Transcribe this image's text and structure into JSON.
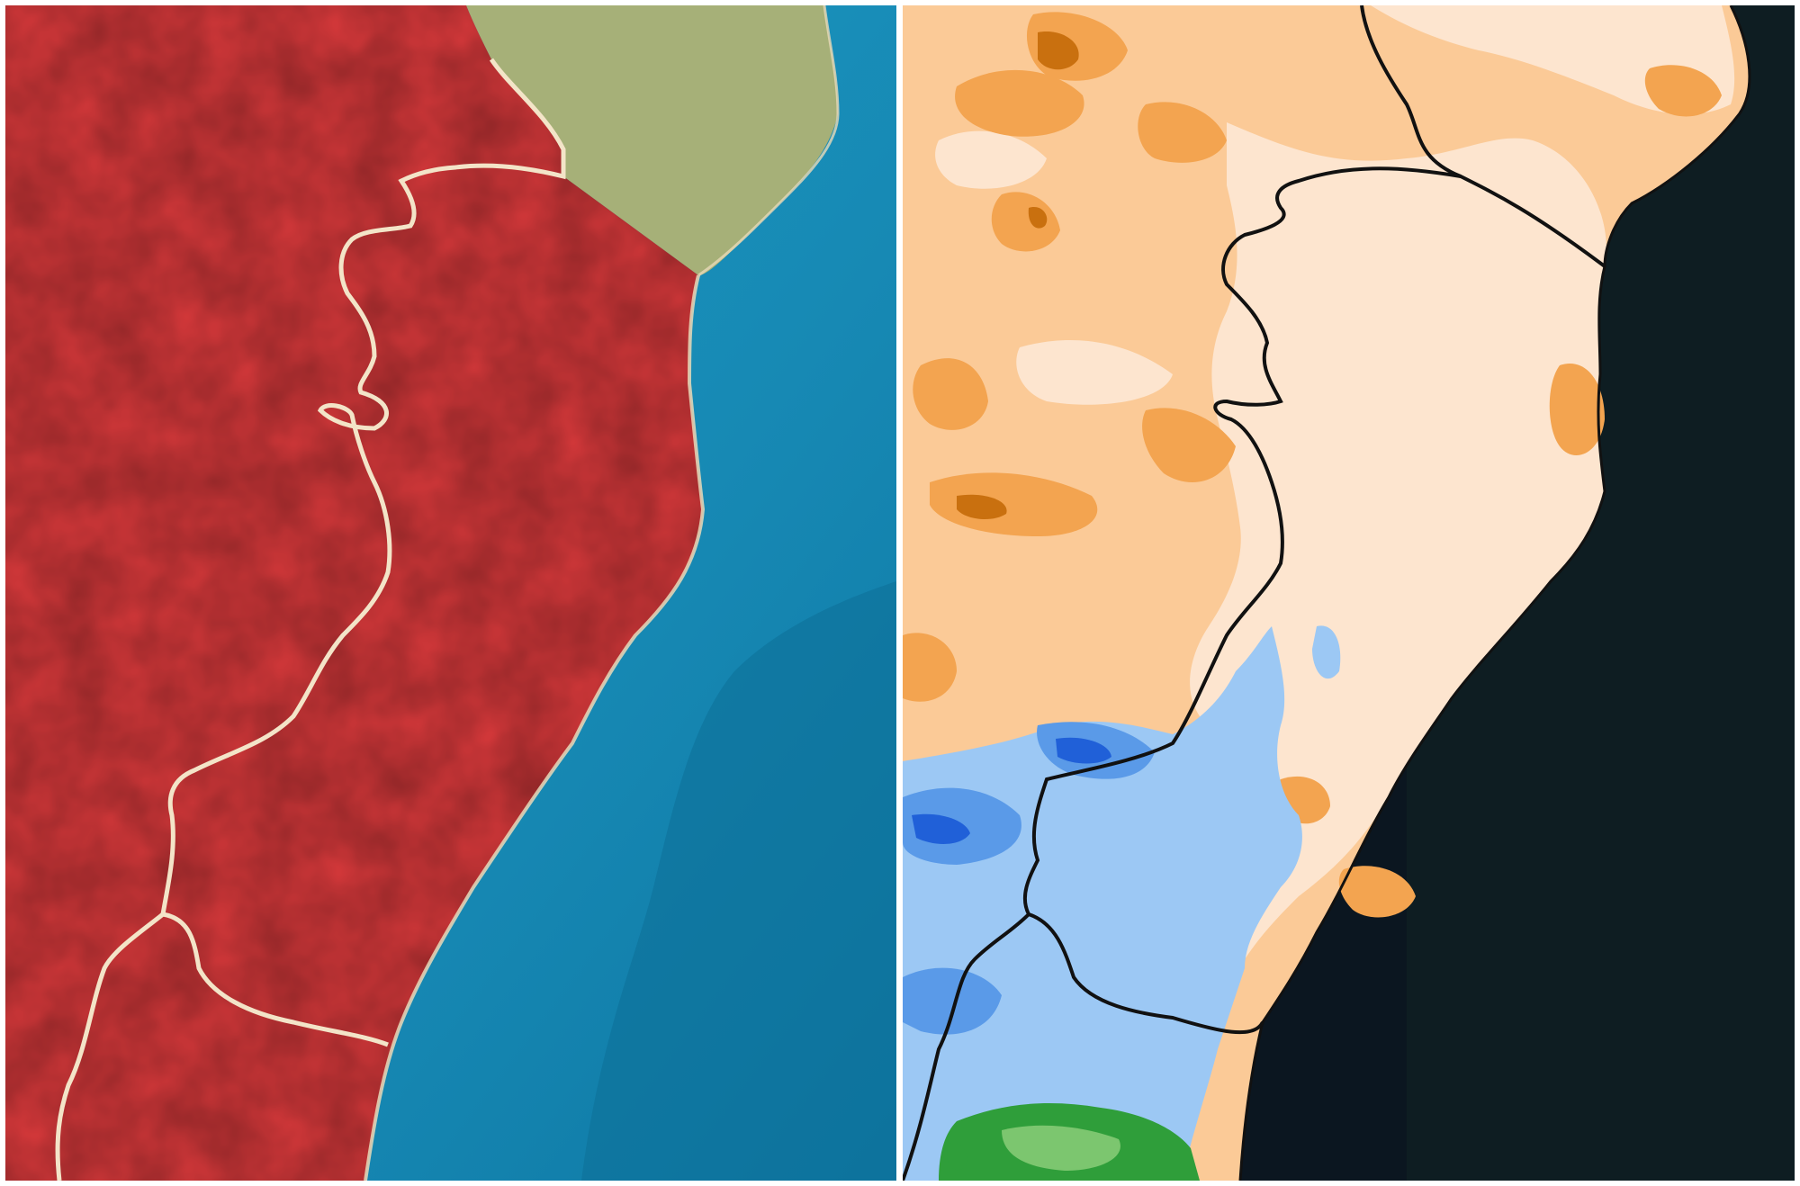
{
  "panels": [
    {
      "id": "left",
      "kind": "satellite-alert-map"
    },
    {
      "id": "right",
      "kind": "precipitation-anomaly-map"
    }
  ],
  "colors": {
    "alert_red": "#d8393b",
    "alert_red_dark": "#bf2a2c",
    "ocean_blue": "#1b8fba",
    "ocean_deep": "#0f7aa6",
    "vegetation_green": "#6f8f3a",
    "land_cream": "#e9d9b6",
    "border_light": "#f2e2c6",
    "anom_pale": "#fde5cf",
    "anom_light_orange": "#fbc996",
    "anom_orange": "#f3a450",
    "anom_dark_orange": "#c9700f",
    "anom_light_blue": "#9cc8f4",
    "anom_blue": "#5a9ae8",
    "anom_dark_blue": "#2060d8",
    "anom_green": "#2f9e3a",
    "sea_dark": "#0b1620",
    "border_black": "#111111"
  }
}
